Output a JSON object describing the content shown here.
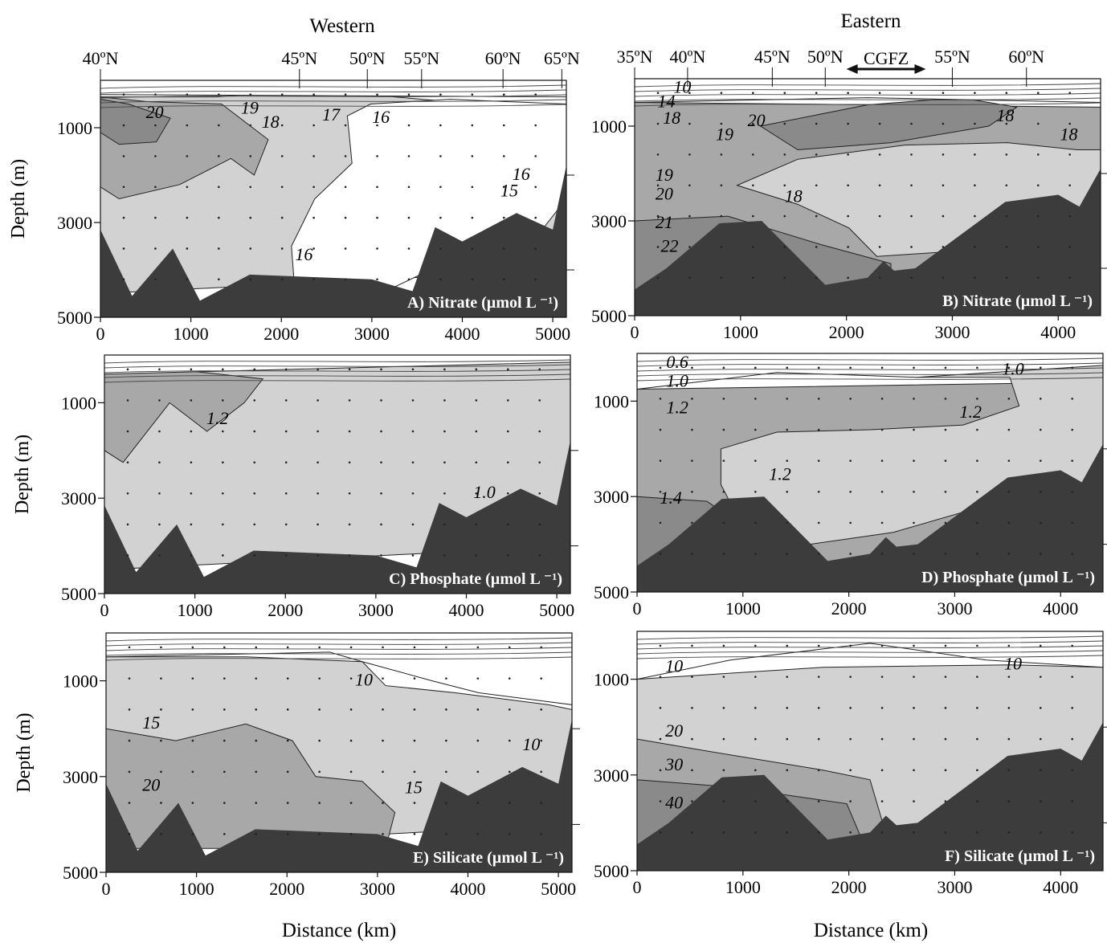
{
  "headings": {
    "western": "Western",
    "eastern": "Eastern"
  },
  "front_label": "CGFZ",
  "y_axis_label": "Depth (m)",
  "x_axis_label": "Distance (km)",
  "colors": {
    "bottom": "#3c3c3c",
    "level1": "#ffffff",
    "level2": "#d2d2d2",
    "level3": "#a8a8a8",
    "level4": "#8a8a8a"
  },
  "chart_data": [
    {
      "id": "A",
      "type": "contour",
      "section": "Western",
      "title": "A) Nitrate (µmol L ⁻¹)",
      "xlabel": "",
      "ylabel": "Depth (m)",
      "xlim": [
        0,
        5150
      ],
      "ylim": [
        0,
        5000
      ],
      "y_inverted": true,
      "xticks": [
        0,
        1000,
        2000,
        3000,
        4000,
        5000
      ],
      "yticks": [
        1000,
        3000,
        5000
      ],
      "lat_ticks": [
        {
          "km": 0,
          "label": "40ºN"
        },
        {
          "km": 2200,
          "label": "45ºN"
        },
        {
          "km": 2950,
          "label": "50ºN"
        },
        {
          "km": 3550,
          "label": "55ºN"
        },
        {
          "km": 4450,
          "label": "60ºN"
        },
        {
          "km": 5100,
          "label": "65ºN"
        }
      ],
      "contour_labels": [
        {
          "value": "20",
          "x": 600,
          "depth": 800
        },
        {
          "value": "19",
          "x": 1650,
          "depth": 700
        },
        {
          "value": "18",
          "x": 1880,
          "depth": 1000
        },
        {
          "value": "17",
          "x": 2550,
          "depth": 850
        },
        {
          "value": "16",
          "x": 3100,
          "depth": 900
        },
        {
          "value": "16",
          "x": 4650,
          "depth": 2100
        },
        {
          "value": "15",
          "x": 4520,
          "depth": 2450
        },
        {
          "value": "16",
          "x": 2250,
          "depth": 3800
        }
      ],
      "bottom_profile": [
        [
          0,
          3150
        ],
        [
          350,
          4550
        ],
        [
          800,
          3550
        ],
        [
          1100,
          4650
        ],
        [
          1650,
          4100
        ],
        [
          3000,
          4200
        ],
        [
          3450,
          4450
        ],
        [
          3700,
          3100
        ],
        [
          4000,
          3400
        ],
        [
          4600,
          2800
        ],
        [
          5000,
          3150
        ],
        [
          5150,
          1800
        ]
      ]
    },
    {
      "id": "B",
      "type": "contour",
      "section": "Eastern",
      "title": "B) Nitrate (µmol L ⁻¹)",
      "xlabel": "",
      "ylabel": "",
      "xlim": [
        0,
        4400
      ],
      "ylim": [
        0,
        5000
      ],
      "y_inverted": true,
      "xticks": [
        0,
        1000,
        2000,
        3000,
        4000
      ],
      "yticks": [
        1000,
        3000,
        5000
      ],
      "lat_ticks": [
        {
          "km": 0,
          "label": "35ºN"
        },
        {
          "km": 500,
          "label": "40ºN"
        },
        {
          "km": 1300,
          "label": "45ºN"
        },
        {
          "km": 1800,
          "label": "50ºN"
        },
        {
          "km": 3000,
          "label": "55ºN"
        },
        {
          "km": 3700,
          "label": "60ºN"
        }
      ],
      "front_range_km": [
        2000,
        2750
      ],
      "contour_labels": [
        {
          "value": "10",
          "x": 450,
          "depth": 300
        },
        {
          "value": "14",
          "x": 300,
          "depth": 600
        },
        {
          "value": "18",
          "x": 350,
          "depth": 950
        },
        {
          "value": "20",
          "x": 1150,
          "depth": 1000
        },
        {
          "value": "19",
          "x": 850,
          "depth": 1300
        },
        {
          "value": "18",
          "x": 3500,
          "depth": 900
        },
        {
          "value": "18",
          "x": 4100,
          "depth": 1300
        },
        {
          "value": "19",
          "x": 280,
          "depth": 2150
        },
        {
          "value": "20",
          "x": 280,
          "depth": 2550
        },
        {
          "value": "18",
          "x": 1500,
          "depth": 2600
        },
        {
          "value": "21",
          "x": 280,
          "depth": 3150
        },
        {
          "value": "22",
          "x": 330,
          "depth": 3650
        }
      ],
      "bottom_profile": [
        [
          0,
          4450
        ],
        [
          300,
          4000
        ],
        [
          800,
          3050
        ],
        [
          1200,
          3000
        ],
        [
          1800,
          4350
        ],
        [
          2200,
          4200
        ],
        [
          2350,
          3850
        ],
        [
          2450,
          4050
        ],
        [
          2650,
          4000
        ],
        [
          3500,
          2600
        ],
        [
          4000,
          2450
        ],
        [
          4200,
          2700
        ],
        [
          4400,
          1900
        ]
      ]
    },
    {
      "id": "C",
      "type": "contour",
      "section": "Western",
      "title": "C) Phosphate (µmol L ⁻¹)",
      "xlabel": "",
      "ylabel": "Depth (m)",
      "xlim": [
        0,
        5150
      ],
      "ylim": [
        0,
        5000
      ],
      "y_inverted": true,
      "xticks": [
        0,
        1000,
        2000,
        3000,
        4000,
        5000
      ],
      "yticks": [
        1000,
        3000,
        5000
      ],
      "contour_labels": [
        {
          "value": "1.2",
          "x": 1250,
          "depth": 1450
        },
        {
          "value": "1.0",
          "x": 4200,
          "depth": 3000
        }
      ],
      "bottom_profile": [
        [
          0,
          3150
        ],
        [
          350,
          4550
        ],
        [
          800,
          3550
        ],
        [
          1100,
          4650
        ],
        [
          1650,
          4100
        ],
        [
          3000,
          4200
        ],
        [
          3450,
          4450
        ],
        [
          3700,
          3100
        ],
        [
          4000,
          3400
        ],
        [
          4600,
          2800
        ],
        [
          5000,
          3150
        ],
        [
          5150,
          1800
        ]
      ]
    },
    {
      "id": "D",
      "type": "contour",
      "section": "Eastern",
      "title": "D) Phosphate (µmol L ⁻¹)",
      "xlabel": "",
      "ylabel": "",
      "xlim": [
        0,
        4400
      ],
      "ylim": [
        0,
        5000
      ],
      "y_inverted": true,
      "xticks": [
        0,
        1000,
        2000,
        3000,
        4000
      ],
      "yticks": [
        1000,
        3000,
        5000
      ],
      "contour_labels": [
        {
          "value": "0.6",
          "x": 380,
          "depth": 300
        },
        {
          "value": "1.0",
          "x": 380,
          "depth": 700
        },
        {
          "value": "1.2",
          "x": 380,
          "depth": 1250
        },
        {
          "value": "1.0",
          "x": 3550,
          "depth": 450
        },
        {
          "value": "1.2",
          "x": 3150,
          "depth": 1350
        },
        {
          "value": "1.2",
          "x": 1350,
          "depth": 2650
        },
        {
          "value": "1.4",
          "x": 320,
          "depth": 3150
        }
      ],
      "bottom_profile": [
        [
          0,
          4450
        ],
        [
          300,
          4000
        ],
        [
          800,
          3050
        ],
        [
          1200,
          3000
        ],
        [
          1800,
          4350
        ],
        [
          2200,
          4200
        ],
        [
          2350,
          3850
        ],
        [
          2450,
          4050
        ],
        [
          2650,
          4000
        ],
        [
          3500,
          2600
        ],
        [
          4000,
          2450
        ],
        [
          4200,
          2700
        ],
        [
          4400,
          1900
        ]
      ]
    },
    {
      "id": "E",
      "type": "contour",
      "section": "Western",
      "title": "E) Silicate (µmol L ⁻¹)",
      "xlabel": "Distance (km)",
      "ylabel": "Depth (m)",
      "xlim": [
        0,
        5150
      ],
      "ylim": [
        0,
        5000
      ],
      "y_inverted": true,
      "xticks": [
        0,
        1000,
        2000,
        3000,
        4000,
        5000
      ],
      "yticks": [
        1000,
        3000,
        5000
      ],
      "contour_labels": [
        {
          "value": "10",
          "x": 2850,
          "depth": 1100
        },
        {
          "value": "15",
          "x": 500,
          "depth": 2000
        },
        {
          "value": "20",
          "x": 500,
          "depth": 3300
        },
        {
          "value": "15",
          "x": 3400,
          "depth": 3350
        },
        {
          "value": "10",
          "x": 4700,
          "depth": 2450
        }
      ],
      "bottom_profile": [
        [
          0,
          3150
        ],
        [
          350,
          4550
        ],
        [
          800,
          3550
        ],
        [
          1100,
          4650
        ],
        [
          1650,
          4100
        ],
        [
          3000,
          4200
        ],
        [
          3450,
          4450
        ],
        [
          3700,
          3100
        ],
        [
          4000,
          3400
        ],
        [
          4600,
          2800
        ],
        [
          5000,
          3150
        ],
        [
          5150,
          1800
        ]
      ]
    },
    {
      "id": "F",
      "type": "contour",
      "section": "Eastern",
      "title": "F) Silicate (µmol L ⁻¹)",
      "xlabel": "Distance (km)",
      "ylabel": "",
      "xlim": [
        0,
        4400
      ],
      "ylim": [
        0,
        5000
      ],
      "y_inverted": true,
      "xticks": [
        0,
        1000,
        2000,
        3000,
        4000
      ],
      "yticks": [
        1000,
        3000,
        5000
      ],
      "contour_labels": [
        {
          "value": "10",
          "x": 350,
          "depth": 850
        },
        {
          "value": "10",
          "x": 3550,
          "depth": 800
        },
        {
          "value": "20",
          "x": 350,
          "depth": 2200
        },
        {
          "value": "30",
          "x": 350,
          "depth": 2900
        },
        {
          "value": "40",
          "x": 350,
          "depth": 3700
        }
      ],
      "bottom_profile": [
        [
          0,
          4450
        ],
        [
          300,
          4000
        ],
        [
          800,
          3050
        ],
        [
          1200,
          3000
        ],
        [
          1800,
          4350
        ],
        [
          2200,
          4200
        ],
        [
          2350,
          3850
        ],
        [
          2450,
          4050
        ],
        [
          2650,
          4000
        ],
        [
          3500,
          2600
        ],
        [
          4000,
          2450
        ],
        [
          4200,
          2700
        ],
        [
          4400,
          1900
        ]
      ]
    }
  ]
}
